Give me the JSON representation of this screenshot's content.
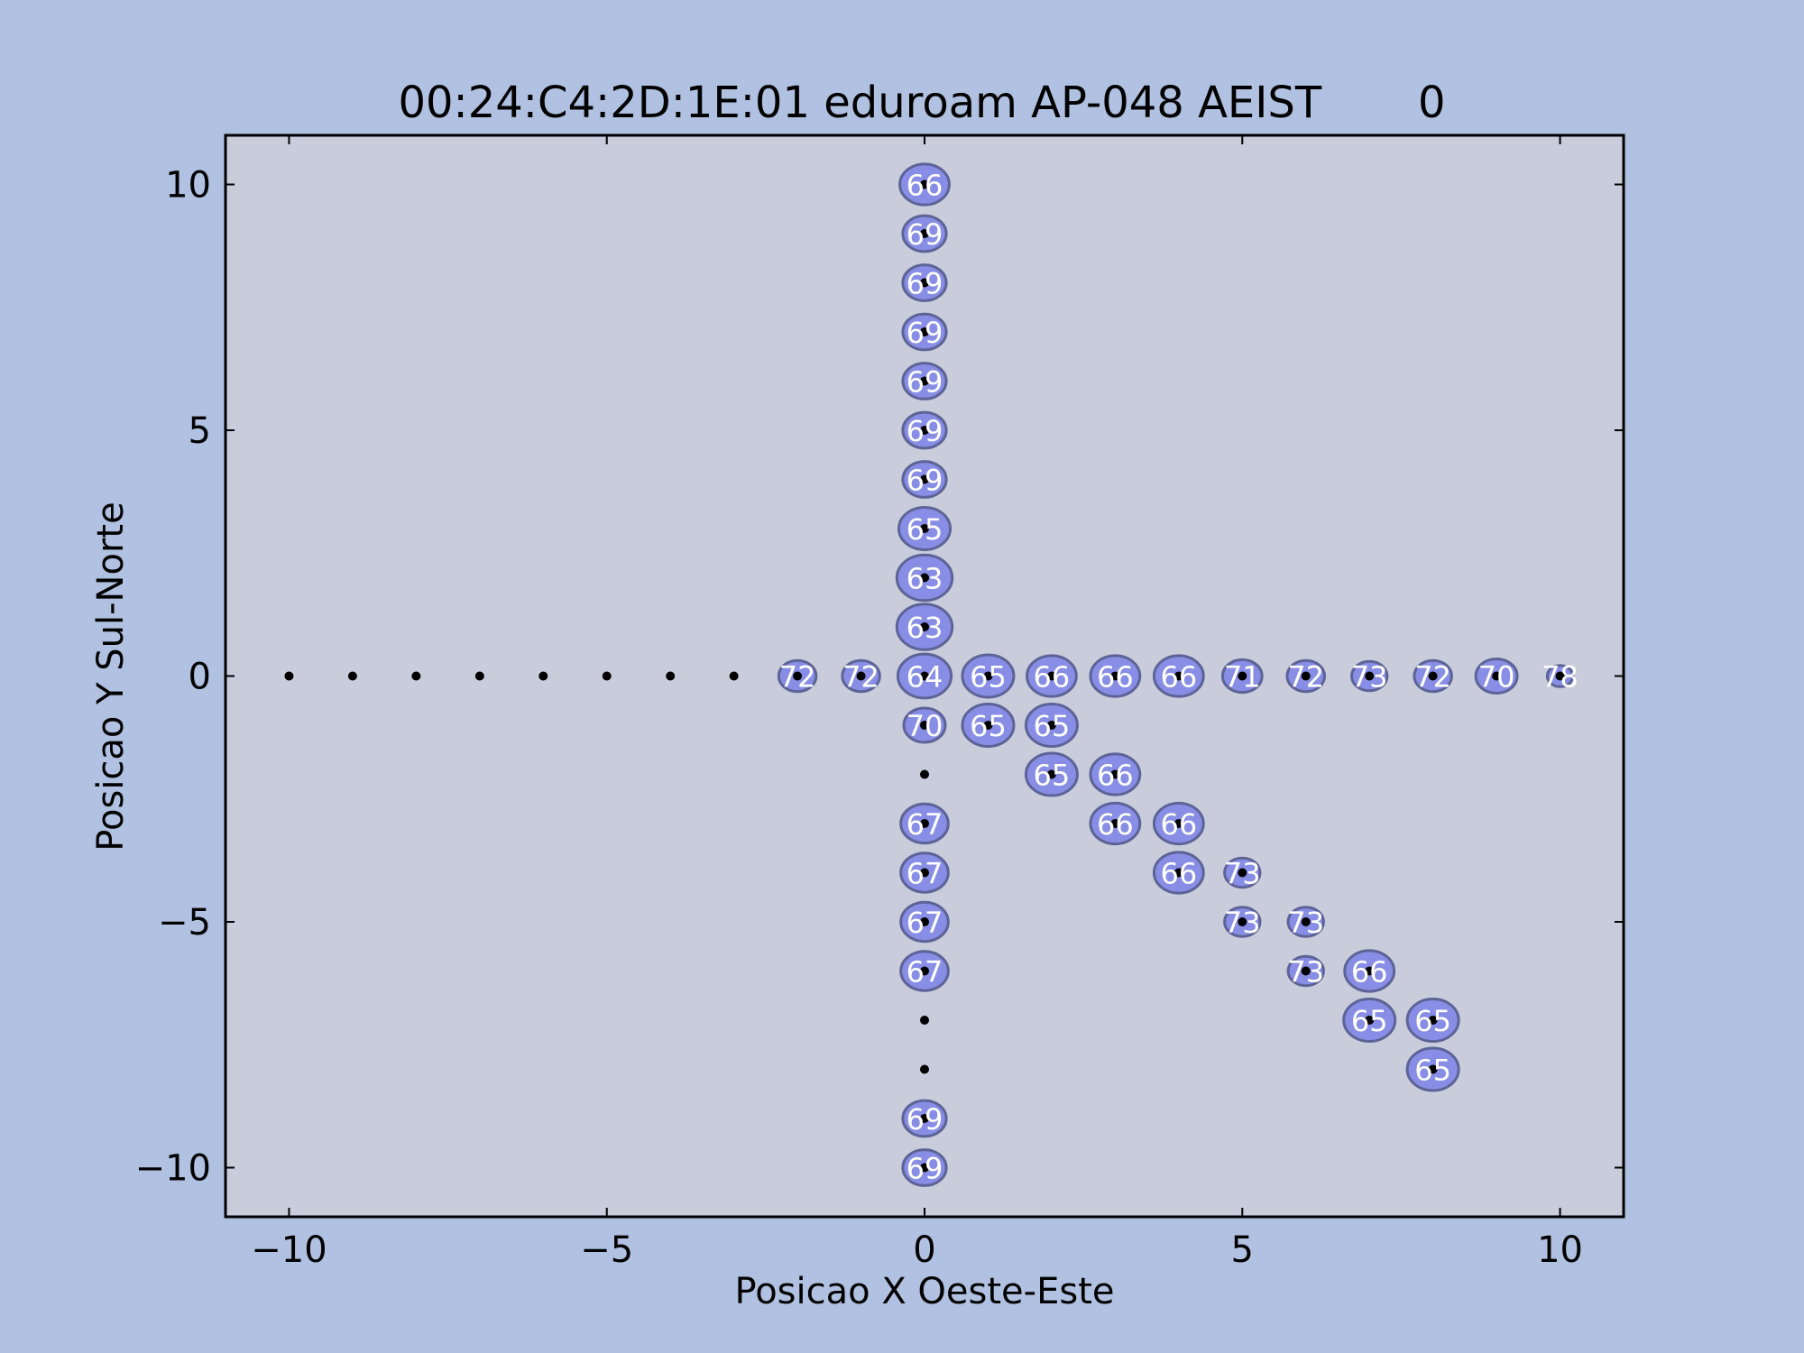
{
  "chart_data": {
    "type": "scatter",
    "title": "00:24:C4:2D:1E:01 eduroam AP-048 AEIST       0",
    "xlabel": "Posicao X Oeste-Este",
    "ylabel": "Posicao Y Sul-Norte",
    "xlim": [
      -11,
      11
    ],
    "ylim": [
      -11,
      11
    ],
    "xticks": [
      -10,
      -5,
      0,
      5,
      10
    ],
    "yticks": [
      -10,
      -5,
      0,
      5,
      10
    ],
    "xtick_labels": [
      "−10",
      "−5",
      "0",
      "5",
      "10"
    ],
    "ytick_labels": [
      "−10",
      "−5",
      "0",
      "5",
      "10"
    ],
    "grid": false,
    "colors": {
      "background": "#b0c1e1",
      "plot_area": "#c8ccdb",
      "marker": "#7c82e6",
      "marker_edge": "#5d6396"
    },
    "points_without_signal": [
      [
        -10,
        0
      ],
      [
        -9,
        0
      ],
      [
        -8,
        0
      ],
      [
        -7,
        0
      ],
      [
        -6,
        0
      ],
      [
        -5,
        0
      ],
      [
        -4,
        0
      ],
      [
        -3,
        0
      ],
      [
        0,
        -2
      ],
      [
        0,
        -7
      ],
      [
        0,
        -8
      ]
    ],
    "points_with_signal": [
      {
        "x": 0,
        "y": 10,
        "v": 66
      },
      {
        "x": 0,
        "y": 9,
        "v": 69
      },
      {
        "x": 0,
        "y": 8,
        "v": 69
      },
      {
        "x": 0,
        "y": 7,
        "v": 69
      },
      {
        "x": 0,
        "y": 6,
        "v": 69
      },
      {
        "x": 0,
        "y": 5,
        "v": 69
      },
      {
        "x": 0,
        "y": 4,
        "v": 69
      },
      {
        "x": 0,
        "y": 3,
        "v": 65
      },
      {
        "x": 0,
        "y": 2,
        "v": 63
      },
      {
        "x": 0,
        "y": 1,
        "v": 63
      },
      {
        "x": -2,
        "y": 0,
        "v": 72
      },
      {
        "x": -1,
        "y": 0,
        "v": 72
      },
      {
        "x": 0,
        "y": 0,
        "v": 64
      },
      {
        "x": 1,
        "y": 0,
        "v": 65
      },
      {
        "x": 2,
        "y": 0,
        "v": 66
      },
      {
        "x": 3,
        "y": 0,
        "v": 66
      },
      {
        "x": 4,
        "y": 0,
        "v": 66
      },
      {
        "x": 5,
        "y": 0,
        "v": 71
      },
      {
        "x": 6,
        "y": 0,
        "v": 72
      },
      {
        "x": 7,
        "y": 0,
        "v": 73
      },
      {
        "x": 8,
        "y": 0,
        "v": 72
      },
      {
        "x": 9,
        "y": 0,
        "v": 70
      },
      {
        "x": 10,
        "y": 0,
        "v": 78
      },
      {
        "x": 0,
        "y": -1,
        "v": 70
      },
      {
        "x": 1,
        "y": -1,
        "v": 65
      },
      {
        "x": 2,
        "y": -1,
        "v": 65
      },
      {
        "x": 2,
        "y": -2,
        "v": 65
      },
      {
        "x": 3,
        "y": -2,
        "v": 66
      },
      {
        "x": 0,
        "y": -3,
        "v": 67
      },
      {
        "x": 3,
        "y": -3,
        "v": 66
      },
      {
        "x": 4,
        "y": -3,
        "v": 66
      },
      {
        "x": 0,
        "y": -4,
        "v": 67
      },
      {
        "x": 4,
        "y": -4,
        "v": 66
      },
      {
        "x": 5,
        "y": -4,
        "v": 73
      },
      {
        "x": 0,
        "y": -5,
        "v": 67
      },
      {
        "x": 5,
        "y": -5,
        "v": 73
      },
      {
        "x": 6,
        "y": -5,
        "v": 73
      },
      {
        "x": 0,
        "y": -6,
        "v": 67
      },
      {
        "x": 6,
        "y": -6,
        "v": 73
      },
      {
        "x": 7,
        "y": -6,
        "v": 66
      },
      {
        "x": 7,
        "y": -7,
        "v": 65
      },
      {
        "x": 8,
        "y": -7,
        "v": 65
      },
      {
        "x": 8,
        "y": -8,
        "v": 65
      },
      {
        "x": 0,
        "y": -9,
        "v": 69
      },
      {
        "x": 0,
        "y": -10,
        "v": 69
      }
    ]
  }
}
